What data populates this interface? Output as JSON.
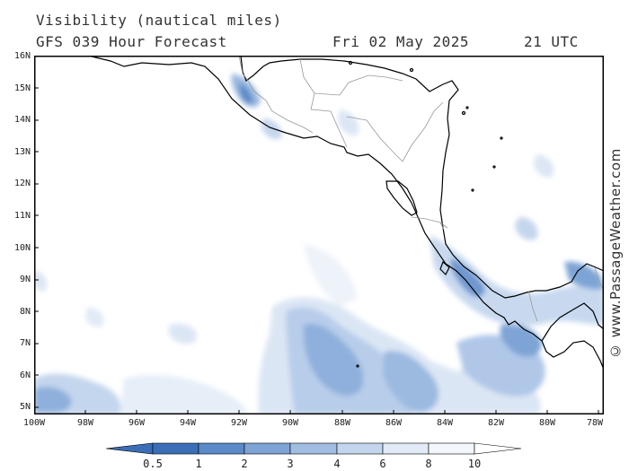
{
  "header": {
    "title": "Visibility (nautical miles)",
    "subtitle": "GFS 039 Hour Forecast",
    "date": "Fri 02 May 2025",
    "time": "21 UTC"
  },
  "watermark": "© www.PassageWeather.com",
  "map": {
    "region": "Central America and Eastern Pacific",
    "lat_range": [
      4.8,
      16.0
    ],
    "lon_range": [
      -100.0,
      -77.8
    ],
    "lat_labels": [
      "16N",
      "15N",
      "14N",
      "13N",
      "12N",
      "11N",
      "10N",
      "9N",
      "8N",
      "7N",
      "6N",
      "5N"
    ],
    "lon_labels": [
      "100W",
      "98W",
      "96W",
      "94W",
      "92W",
      "90W",
      "88W",
      "86W",
      "84W",
      "82W",
      "80W",
      "78W"
    ]
  },
  "legend": {
    "labels": [
      "0.5",
      "1",
      "2",
      "3",
      "4",
      "6",
      "8",
      "10"
    ],
    "colors": [
      "#3a6fb8",
      "#5a8ac8",
      "#7ea4d6",
      "#a2bde2",
      "#c4d6ee",
      "#e1eaf6",
      "#f3f7fc",
      "#ffffff"
    ]
  },
  "colors": {
    "land_outline": "#000000",
    "border": "#999999",
    "low_visibility": "#4a7cc0",
    "high_visibility": "#ffffff"
  }
}
